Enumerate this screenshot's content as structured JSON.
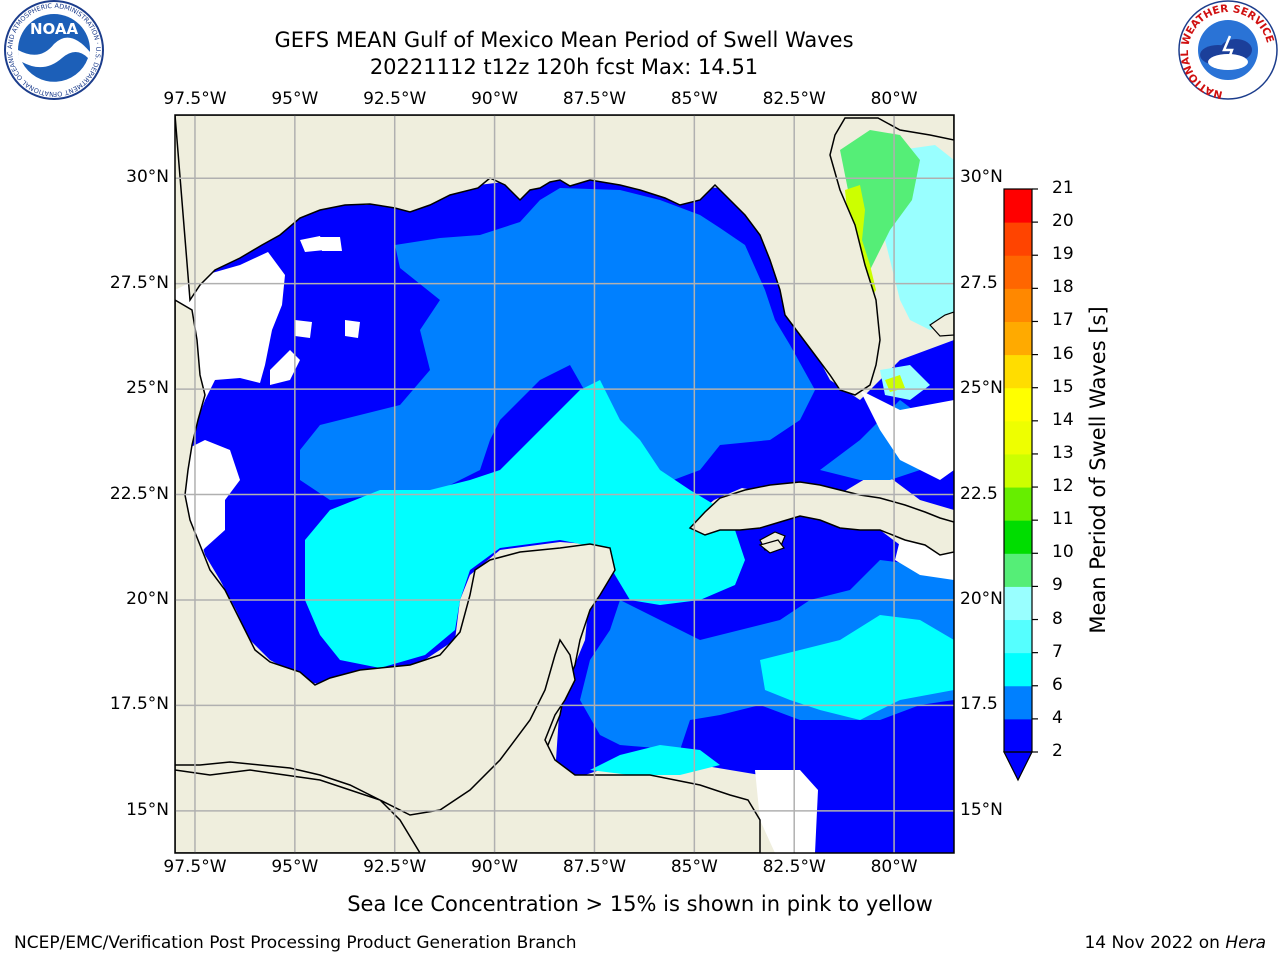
{
  "title": {
    "line1": "GEFS MEAN Gulf of Mexico Mean Period of Swell Waves",
    "line2": "20221112 t12z 120h fcst   Max: 14.51"
  },
  "logos": {
    "noaa_text": "NOAA",
    "noaa_ring": "NATIONAL OCEANIC AND ATMOSPHERIC ADMINISTRATION · U.S. DEPARTMENT OF COMMERCE",
    "nws_ring": "NATIONAL WEATHER SERVICE"
  },
  "map": {
    "lon_range": [
      -98,
      -78.5
    ],
    "lat_range": [
      14,
      31.5
    ],
    "lon_ticks": [
      "97.5°W",
      "95°W",
      "92.5°W",
      "90°W",
      "87.5°W",
      "85°W",
      "82.5°W",
      "80°W"
    ],
    "lon_tick_values": [
      -97.5,
      -95,
      -92.5,
      -90,
      -87.5,
      -85,
      -82.5,
      -80
    ],
    "lat_ticks_left": [
      "30°N",
      "27.5°N",
      "25°N",
      "22.5°N",
      "20°N",
      "17.5°N",
      "15°N"
    ],
    "lat_ticks_right": [
      "30°N",
      "27.5",
      "25°N",
      "22.5",
      "20°N",
      "17.5",
      "15°N"
    ],
    "lat_tick_values": [
      30,
      27.5,
      25,
      22.5,
      20,
      17.5,
      15
    ],
    "grid": true,
    "land_color": "#efeedd",
    "coast_color": "#000000"
  },
  "colorbar": {
    "label": "Mean Period of Swell Waves [s]",
    "ticks": [
      "21",
      "20",
      "19",
      "18",
      "17",
      "16",
      "15",
      "14",
      "13",
      "12",
      "11",
      "10",
      "9",
      "8",
      "7",
      "6",
      "4",
      "2"
    ],
    "colors": [
      "#0000ff",
      "#0080ff",
      "#00ffff",
      "#55ffff",
      "#99ffff",
      "#55ee77",
      "#00dd00",
      "#66ee00",
      "#ccff00",
      "#eeff00",
      "#ffff00",
      "#ffdd00",
      "#ffaa00",
      "#ff8800",
      "#ff6600",
      "#ff4400",
      "#ff0000"
    ]
  },
  "footer": {
    "note": "Sea Ice Concentration > 15% is shown in pink to yellow",
    "left": "NCEP/EMC/Verification Post Processing Product Generation Branch",
    "right_prefix": "14 Nov 2022 on ",
    "right_italic": "Hera"
  }
}
